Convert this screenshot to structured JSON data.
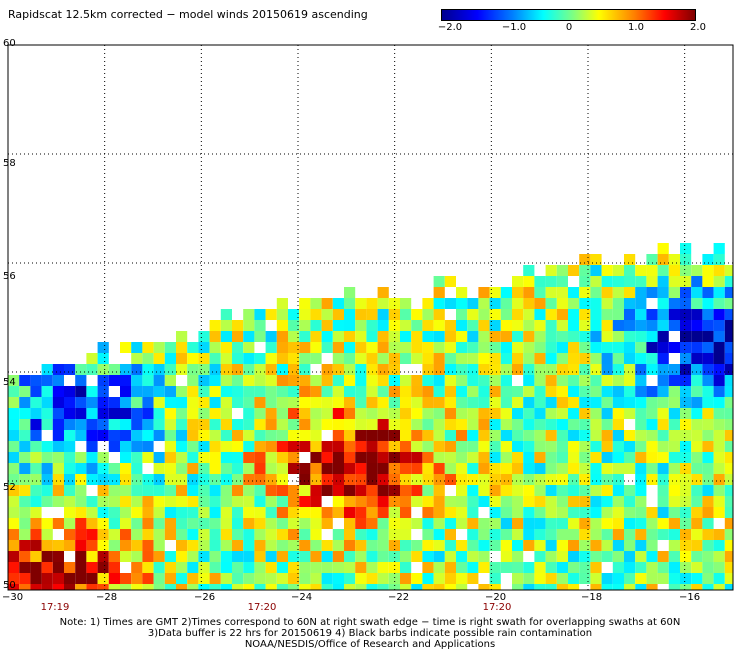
{
  "title": "Rapidscat 12.5km corrected − model winds 20150619 ascending",
  "colorbar": {
    "labels": [
      "−2.0",
      "−1.0",
      "0",
      "1.0",
      "2.0"
    ],
    "colors": [
      "#00008f",
      "#0000ff",
      "#0080ff",
      "#00ffff",
      "#80ff80",
      "#ffff00",
      "#ff8000",
      "#ff0000",
      "#800000"
    ]
  },
  "lat_labels": [
    "60",
    "58",
    "56",
    "54",
    "52",
    "50"
  ],
  "lon_labels": [
    "−30",
    "−28",
    "−26",
    "−24",
    "−22",
    "−20",
    "−18",
    "−16"
  ],
  "time_labels": [
    "17:19",
    "17:20",
    "17:20"
  ],
  "notes": [
    "Note: 1) Times are GMT 2)Times correspond to 60N at right swath edge − time is right swath for overlapping swaths at 60N",
    "3)Data buffer is 22 hrs for 20150619 4) Black barbs indicate possible rain contamination",
    "NOAA/NESDIS/Office of Research and Applications"
  ],
  "map_data": {
    "lon_range": [
      -30,
      -15
    ],
    "lat_range": [
      50,
      60
    ],
    "grid_interval_deg": 2,
    "swath_top_edge_latitude_approx": [
      [
        -30,
        53.8
      ],
      [
        -28,
        54.3
      ],
      [
        -26,
        54.8
      ],
      [
        -24,
        55.3
      ],
      [
        -22,
        55.5
      ],
      [
        -20,
        55.7
      ],
      [
        -18,
        56.0
      ],
      [
        -15.5,
        56.2
      ]
    ],
    "anomaly_regions": [
      {
        "name": "strong positive",
        "lon": -22.8,
        "lat": 52.3,
        "value": 2.0
      },
      {
        "name": "positive",
        "lon": -29,
        "lat": 50.2,
        "value": 1.8
      },
      {
        "name": "negative",
        "lon": -15.5,
        "lat": 54.5,
        "value": -2.0
      },
      {
        "name": "negative",
        "lon": -28.5,
        "lat": 53.3,
        "value": -1.5
      }
    ]
  }
}
